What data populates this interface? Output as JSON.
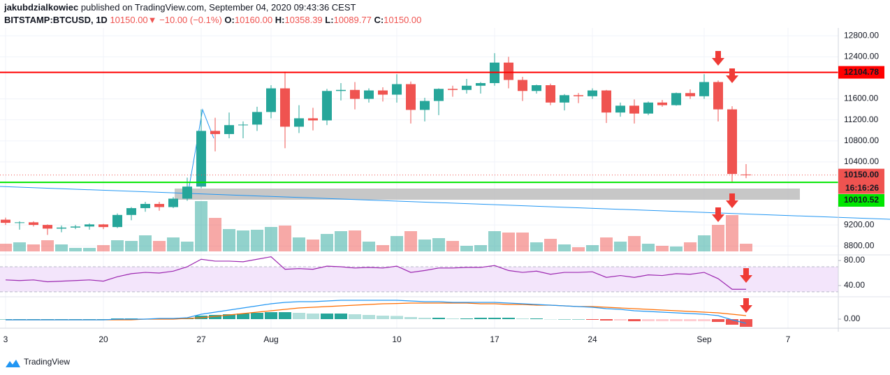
{
  "header": {
    "author": "jakubdzialkowiec",
    "published": "published on TradingView.com, September 04, 2020 09:43:36 CEST",
    "symbol": "BITSTAMP:BTCUSD, 1D",
    "last": "10150.00",
    "change": "▼ −10.00 (−0.1%)",
    "o_label": "O:",
    "o": "10160.00",
    "h_label": "H:",
    "h": "10358.39",
    "l_label": "L:",
    "l": "10089.77",
    "c_label": "C:",
    "c": "10150.00"
  },
  "brand": "TradingView",
  "chart_data": {
    "type": "candlestick",
    "open": [
      9300,
      9240,
      9250,
      9200,
      9130,
      9150,
      9170,
      9210,
      9160,
      9390,
      9520,
      9600,
      9540,
      9700,
      9930,
      10990,
      10930,
      11100,
      11110,
      11350,
      11800,
      11070,
      11230,
      11190,
      11750,
      11770,
      11600,
      11760,
      11680,
      11880,
      11390,
      11560,
      11790,
      11770,
      11850,
      11900,
      12290,
      11960,
      11750,
      11860,
      11530,
      11670,
      11650,
      11760,
      11340,
      11470,
      11320,
      11530,
      11480,
      11710,
      11650,
      11920,
      11400,
      10160
    ],
    "high": [
      9340,
      9270,
      9270,
      9210,
      9190,
      9200,
      9230,
      9220,
      9420,
      9540,
      9640,
      9640,
      9730,
      10100,
      11400,
      11240,
      11340,
      11170,
      11450,
      11860,
      12120,
      11480,
      11430,
      11790,
      11900,
      11920,
      11800,
      11820,
      12070,
      11930,
      11620,
      11800,
      11850,
      11980,
      11920,
      12470,
      12400,
      12020,
      11870,
      11890,
      11690,
      11710,
      11800,
      11770,
      11530,
      11590,
      11550,
      11580,
      11720,
      11780,
      12070,
      11950,
      11460,
      10358.39
    ],
    "low": [
      9200,
      9110,
      9170,
      9010,
      9060,
      9120,
      9110,
      9120,
      9140,
      9290,
      9450,
      9470,
      9520,
      9660,
      9900,
      10600,
      10850,
      10850,
      10990,
      11230,
      10660,
      10950,
      11000,
      11100,
      11570,
      11400,
      11530,
      11550,
      11530,
      11130,
      11170,
      11290,
      11640,
      11700,
      11700,
      11850,
      11800,
      11560,
      11700,
      11480,
      11380,
      11520,
      11600,
      11140,
      11260,
      11130,
      11290,
      11450,
      11470,
      11600,
      11600,
      11170,
      10000,
      10089.77
    ],
    "close": [
      9240,
      9250,
      9200,
      9130,
      9150,
      9170,
      9210,
      9160,
      9390,
      9520,
      9600,
      9540,
      9700,
      9930,
      10990,
      10930,
      11100,
      11110,
      11350,
      11800,
      11070,
      11230,
      11190,
      11750,
      11770,
      11600,
      11760,
      11680,
      11880,
      11390,
      11560,
      11790,
      11770,
      11850,
      11900,
      12290,
      11960,
      11750,
      11860,
      11530,
      11670,
      11650,
      11760,
      11340,
      11470,
      11320,
      11530,
      11480,
      11710,
      11650,
      11920,
      11400,
      10170,
      10150
    ],
    "volume": [
      5500,
      6500,
      5000,
      8000,
      5000,
      2500,
      2500,
      4500,
      8000,
      7500,
      11500,
      7500,
      10000,
      7000,
      36000,
      24000,
      16000,
      15000,
      15500,
      17500,
      18500,
      10000,
      8500,
      12500,
      14500,
      15000,
      7000,
      4500,
      11000,
      14500,
      8500,
      9500,
      7500,
      4000,
      4500,
      14500,
      13500,
      13500,
      6500,
      9000,
      5000,
      3000,
      4500,
      10000,
      7000,
      11000,
      5500,
      4000,
      3500,
      6500,
      11500,
      19000,
      26000,
      5500
    ],
    "up_color": "#26a69a",
    "down_color": "#ef5350",
    "xlim": [
      -0.4,
      59.6
    ],
    "xticks": [
      {
        "value": 0,
        "label": "3"
      },
      {
        "value": 7,
        "label": "20"
      },
      {
        "value": 14,
        "label": "27"
      },
      {
        "value": 19,
        "label": "Aug"
      },
      {
        "value": 28,
        "label": "10"
      },
      {
        "value": 35,
        "label": "17"
      },
      {
        "value": 42,
        "label": "24"
      },
      {
        "value": 50,
        "label": "Sep"
      },
      {
        "value": 56,
        "label": "7"
      }
    ],
    "ylim": [
      8630,
      12950
    ],
    "yticks": [
      {
        "value": 12800,
        "label": "12800.00"
      },
      {
        "value": 12400,
        "label": "12400.00"
      },
      {
        "value": 11600,
        "label": "11600.00"
      },
      {
        "value": 11200,
        "label": "11200.00"
      },
      {
        "value": 10800,
        "label": "10800.00"
      },
      {
        "value": 10400,
        "label": "10400.00"
      },
      {
        "value": 9200,
        "label": "9200.00"
      },
      {
        "value": 8800,
        "label": "8800.00"
      }
    ],
    "hlines": [
      {
        "value": 12104.78,
        "label": "12104.78",
        "color": "#ff0000"
      },
      {
        "value": 10010.52,
        "label": "10010.52",
        "color": "#00e600"
      }
    ],
    "last_price": {
      "value": 10150,
      "label": "10150.00",
      "countdown": "16:16:26"
    },
    "rsi": {
      "color": "#9c27b0",
      "ylim": [
        22,
        89
      ],
      "yticks": [
        {
          "value": 80,
          "label": "80.00"
        },
        {
          "value": 40,
          "label": "40.00"
        }
      ],
      "bands": [
        70,
        30
      ],
      "values": [
        49,
        48,
        49,
        46,
        47,
        48,
        49,
        47,
        54,
        59,
        61,
        60,
        63,
        70,
        82,
        79,
        79,
        78,
        82,
        86,
        66,
        67,
        66,
        71,
        70,
        68,
        69,
        68,
        71,
        61,
        64,
        68,
        68,
        69,
        69,
        72,
        64,
        61,
        63,
        58,
        61,
        61,
        62,
        53,
        56,
        53,
        57,
        56,
        59,
        58,
        61,
        51,
        34,
        34
      ]
    },
    "macd": {
      "macd_color": "#2196f3",
      "signal_color": "#ff6d00",
      "ylim": [
        -275,
        800
      ],
      "yticks": [
        {
          "value": 0,
          "label": "0.00"
        }
      ],
      "macd": [
        -25,
        -25,
        -25,
        -25,
        -25,
        -25,
        -25,
        -25,
        0,
        0,
        0,
        25,
        25,
        50,
        175,
        250,
        325,
        400,
        475,
        550,
        600,
        625,
        625,
        650,
        675,
        675,
        675,
        675,
        675,
        650,
        625,
        625,
        600,
        600,
        600,
        600,
        575,
        550,
        525,
        500,
        475,
        450,
        425,
        375,
        350,
        300,
        275,
        250,
        225,
        200,
        175,
        125,
        -25,
        -150
      ],
      "signal": [
        -25,
        -25,
        -25,
        -25,
        -25,
        -25,
        -25,
        -25,
        -25,
        -25,
        0,
        0,
        0,
        25,
        50,
        100,
        150,
        200,
        250,
        300,
        350,
        400,
        425,
        450,
        475,
        500,
        525,
        550,
        560,
        575,
        575,
        575,
        575,
        575,
        550,
        550,
        525,
        525,
        500,
        500,
        475,
        450,
        450,
        425,
        400,
        375,
        350,
        325,
        300,
        275,
        250,
        225,
        175,
        125
      ],
      "histogram": [
        0,
        0,
        0,
        0,
        0,
        0,
        0,
        0,
        25,
        25,
        0,
        25,
        25,
        25,
        125,
        150,
        175,
        200,
        225,
        250,
        250,
        225,
        200,
        200,
        200,
        175,
        150,
        125,
        115,
        75,
        50,
        50,
        25,
        25,
        50,
        50,
        50,
        25,
        25,
        0,
        0,
        0,
        -25,
        -50,
        -50,
        -75,
        -75,
        -75,
        -75,
        -75,
        -75,
        -100,
        -200,
        -275
      ]
    }
  }
}
